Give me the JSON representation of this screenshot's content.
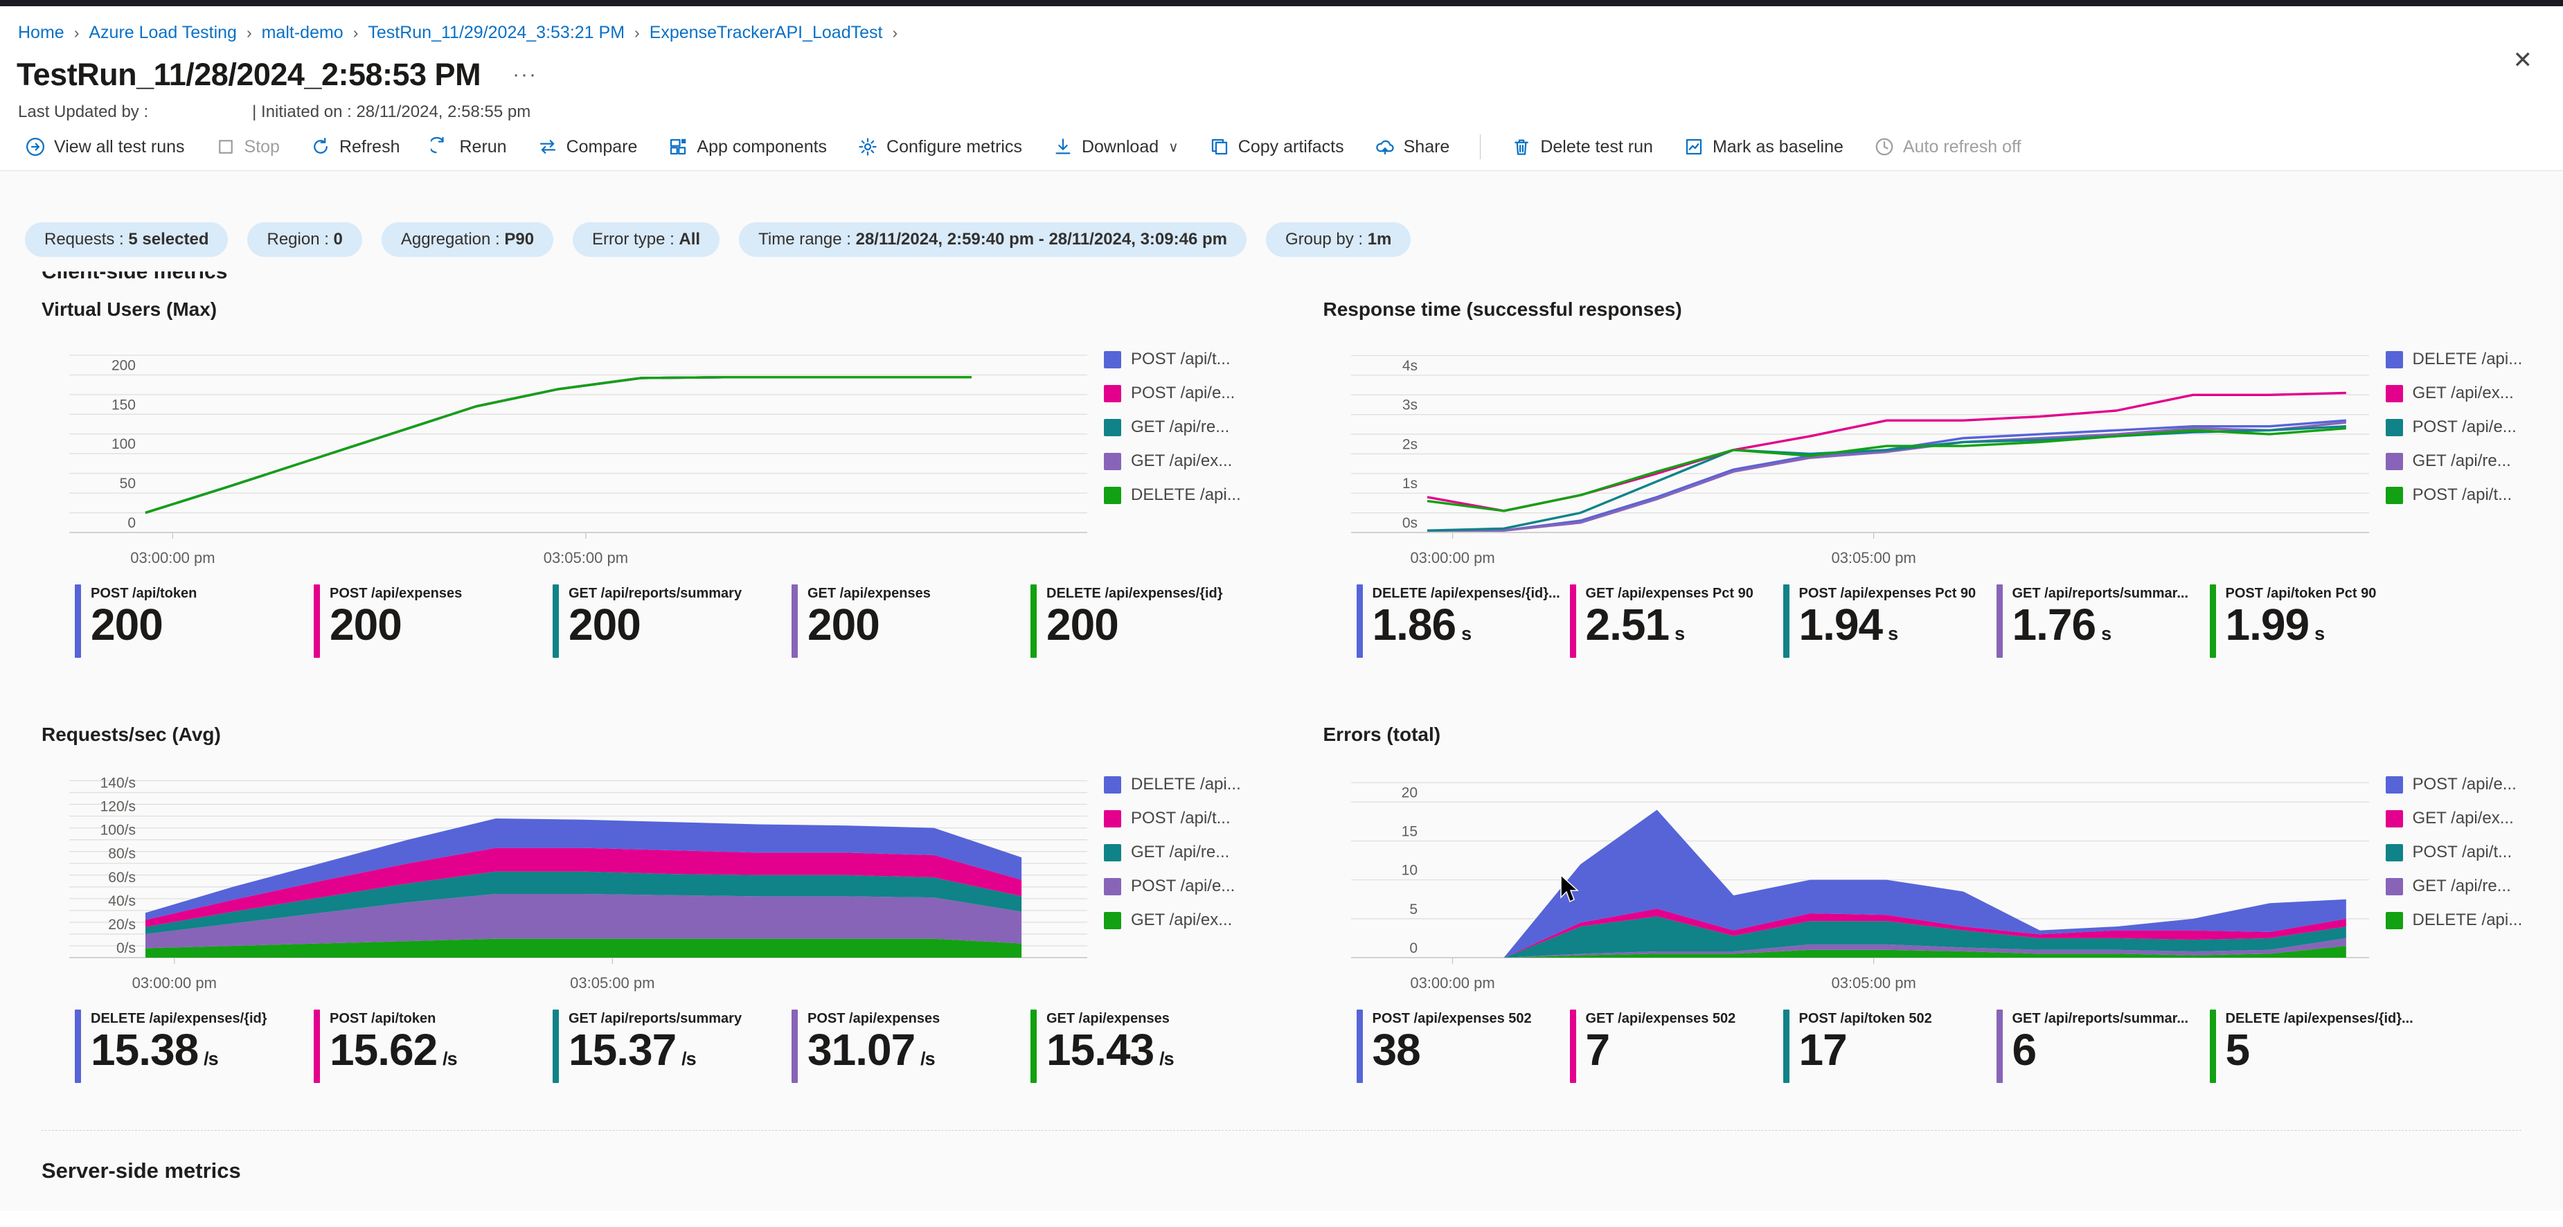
{
  "page": {
    "close_icon": "✕",
    "title_ellipsis": "···"
  },
  "breadcrumb": {
    "separator": "›",
    "items": [
      "Home",
      "Azure Load Testing",
      "malt-demo",
      "TestRun_11/29/2024_3:53:21 PM",
      "ExpenseTrackerAPI_LoadTest"
    ]
  },
  "header": {
    "title": "TestRun_11/28/2024_2:58:53 PM",
    "last_updated": "Last Updated by :",
    "initiated": "| Initiated on : 28/11/2024, 2:58:55 pm"
  },
  "toolbar": {
    "items": [
      {
        "label": "View all test runs",
        "icon": "open-in-circle-icon",
        "disabled": false
      },
      {
        "label": "Stop",
        "icon": "stop-icon",
        "disabled": true
      },
      {
        "label": "Refresh",
        "icon": "refresh-icon",
        "disabled": false
      },
      {
        "label": "Rerun",
        "icon": "rerun-icon",
        "disabled": false
      },
      {
        "label": "Compare",
        "icon": "compare-icon",
        "disabled": false
      },
      {
        "label": "App components",
        "icon": "app-components-icon",
        "disabled": false
      },
      {
        "label": "Configure metrics",
        "icon": "gear-icon",
        "disabled": false
      },
      {
        "label": "Download",
        "icon": "download-icon",
        "disabled": false,
        "chevron": "∨"
      },
      {
        "label": "Copy artifacts",
        "icon": "copy-icon",
        "disabled": false
      },
      {
        "label": "Share",
        "icon": "share-icon",
        "disabled": false
      },
      {
        "divider": true
      },
      {
        "label": "Delete test run",
        "icon": "trash-icon",
        "disabled": false
      },
      {
        "label": "Mark as baseline",
        "icon": "baseline-icon",
        "disabled": false
      },
      {
        "label": "Auto refresh off",
        "icon": "clock-icon",
        "disabled": true
      }
    ]
  },
  "clipped_heading": "Client-side metrics",
  "filters": [
    {
      "label": "Requests",
      "value": "5 selected"
    },
    {
      "label": "Region",
      "value": "0"
    },
    {
      "label": "Aggregation",
      "value": "P90"
    },
    {
      "label": "Error type",
      "value": "All"
    },
    {
      "label": "Time range",
      "value": "28/11/2024, 2:59:40 pm - 28/11/2024, 3:09:46 pm"
    },
    {
      "label": "Group by",
      "value": "1m"
    }
  ],
  "sections": {
    "server_side": "Server-side metrics"
  },
  "colors": {
    "blue": "#5664d8",
    "magenta": "#e3008c",
    "teal": "#0f8387",
    "purple": "#8764b8",
    "green": "#12a112",
    "accent": "#0b71c5",
    "grid": "#e1dfdd",
    "axis": "#c8c6c4",
    "tick_text": "#605e5c"
  },
  "chart_data": [
    {
      "id": "virtual-users",
      "type": "line",
      "side": "left",
      "title": "Virtual Users (Max)",
      "ylim": [
        0,
        232
      ],
      "grid": [
        0,
        25,
        50,
        75,
        100,
        125,
        150,
        175,
        200,
        225
      ],
      "yticks": [
        {
          "v": 0,
          "label": "0"
        },
        {
          "v": 50,
          "label": "50"
        },
        {
          "v": 100,
          "label": "100"
        },
        {
          "v": 150,
          "label": "150"
        },
        {
          "v": 200,
          "label": "200"
        }
      ],
      "xlim": [
        0,
        11.4
      ],
      "xticks": [
        {
          "v": 0.33,
          "label": "03:00:00 pm"
        },
        {
          "v": 5.33,
          "label": "03:05:00 pm"
        }
      ],
      "x": [
        0,
        1,
        2,
        3,
        4,
        5,
        6,
        7,
        8,
        9,
        10
      ],
      "series": [
        {
          "name": "POST /api/token",
          "color": "blue",
          "values": [
            25,
            58,
            92,
            126,
            160,
            182,
            196,
            197,
            197,
            197,
            197
          ]
        },
        {
          "name": "POST /api/expenses",
          "color": "magenta",
          "values": [
            25,
            58,
            92,
            126,
            160,
            182,
            196,
            197,
            197,
            197,
            197
          ]
        },
        {
          "name": "GET /api/reports/summary",
          "color": "teal",
          "values": [
            25,
            58,
            92,
            126,
            160,
            182,
            196,
            197,
            197,
            197,
            197
          ]
        },
        {
          "name": "GET /api/expenses",
          "color": "purple",
          "values": [
            25,
            58,
            92,
            126,
            160,
            182,
            196,
            197,
            197,
            197,
            197
          ]
        },
        {
          "name": "DELETE /api/expenses/{id}",
          "color": "green",
          "values": [
            25,
            58,
            92,
            126,
            160,
            182,
            196,
            197,
            197,
            197,
            197
          ]
        }
      ],
      "legend": [
        {
          "label": "POST /api/t...",
          "color": "blue"
        },
        {
          "label": "POST /api/e...",
          "color": "magenta"
        },
        {
          "label": "GET /api/re...",
          "color": "teal"
        },
        {
          "label": "GET /api/ex...",
          "color": "purple"
        },
        {
          "label": "DELETE /api...",
          "color": "green"
        }
      ],
      "stats": [
        {
          "label": "POST /api/token",
          "value": "200",
          "unit": "",
          "color": "blue"
        },
        {
          "label": "POST /api/expenses",
          "value": "200",
          "unit": "",
          "color": "magenta"
        },
        {
          "label": "GET /api/reports/summary",
          "value": "200",
          "unit": "",
          "color": "teal"
        },
        {
          "label": "GET /api/expenses",
          "value": "200",
          "unit": "",
          "color": "purple"
        },
        {
          "label": "DELETE /api/expenses/{id}",
          "value": "200",
          "unit": "",
          "color": "green"
        }
      ]
    },
    {
      "id": "response-time",
      "type": "line",
      "side": "right",
      "title": "Response time (successful responses)",
      "ylim": [
        0,
        4.65
      ],
      "grid": [
        0,
        0.5,
        1,
        1.5,
        2,
        2.5,
        3,
        3.5,
        4,
        4.5
      ],
      "yticks": [
        {
          "v": 0,
          "label": "0s"
        },
        {
          "v": 1,
          "label": "1s"
        },
        {
          "v": 2,
          "label": "2s"
        },
        {
          "v": 3,
          "label": "3s"
        },
        {
          "v": 4,
          "label": "4s"
        }
      ],
      "xlim": [
        0,
        12.3
      ],
      "xticks": [
        {
          "v": 0.33,
          "label": "03:00:00 pm"
        },
        {
          "v": 5.83,
          "label": "03:05:00 pm"
        }
      ],
      "x": [
        0,
        1,
        2,
        3,
        4,
        5,
        6,
        7,
        8,
        9,
        10,
        11,
        12
      ],
      "series": [
        {
          "name": "DELETE /api/expenses/{id} Pct 90",
          "color": "blue",
          "values": [
            0.05,
            0.05,
            0.3,
            0.9,
            1.6,
            1.95,
            2.1,
            2.4,
            2.5,
            2.6,
            2.7,
            2.7,
            2.85
          ]
        },
        {
          "name": "GET /api/reports/summary Pct 90",
          "color": "purple",
          "values": [
            0.05,
            0.05,
            0.25,
            0.85,
            1.55,
            1.9,
            2.05,
            2.3,
            2.4,
            2.5,
            2.65,
            2.6,
            2.8
          ]
        },
        {
          "name": "POST /api/expenses Pct 90",
          "color": "teal",
          "values": [
            0.05,
            0.1,
            0.5,
            1.3,
            2.1,
            2.0,
            2.1,
            2.3,
            2.35,
            2.45,
            2.55,
            2.6,
            2.7
          ]
        },
        {
          "name": "GET /api/expenses Pct 90",
          "color": "magenta",
          "values": [
            0.9,
            0.55,
            0.95,
            1.5,
            2.1,
            2.45,
            2.85,
            2.85,
            2.95,
            3.1,
            3.5,
            3.5,
            3.55
          ]
        },
        {
          "name": "POST /api/token Pct 90",
          "color": "green",
          "values": [
            0.8,
            0.55,
            0.95,
            1.55,
            2.1,
            1.95,
            2.2,
            2.2,
            2.3,
            2.45,
            2.6,
            2.5,
            2.65
          ]
        }
      ],
      "legend": [
        {
          "label": "DELETE /api...",
          "color": "blue"
        },
        {
          "label": "GET /api/ex...",
          "color": "magenta"
        },
        {
          "label": "POST /api/e...",
          "color": "teal"
        },
        {
          "label": "GET /api/re...",
          "color": "purple"
        },
        {
          "label": "POST /api/t...",
          "color": "green"
        }
      ],
      "stats": [
        {
          "label": "DELETE /api/expenses/{id}...",
          "value": "1.86",
          "unit": "s",
          "color": "blue"
        },
        {
          "label": "GET /api/expenses Pct 90",
          "value": "2.51",
          "unit": "s",
          "color": "magenta"
        },
        {
          "label": "POST /api/expenses Pct 90",
          "value": "1.94",
          "unit": "s",
          "color": "teal"
        },
        {
          "label": "GET /api/reports/summar...",
          "value": "1.76",
          "unit": "s",
          "color": "purple"
        },
        {
          "label": "POST /api/token Pct 90",
          "value": "1.99",
          "unit": "s",
          "color": "green"
        }
      ]
    },
    {
      "id": "requests-per-sec",
      "type": "stacked-area",
      "side": "left",
      "title": "Requests/sec (Avg)",
      "ylim": [
        0,
        155
      ],
      "grid": [
        0,
        10,
        20,
        30,
        40,
        50,
        60,
        70,
        80,
        90,
        100,
        110,
        120,
        130,
        140,
        150
      ],
      "yticks": [
        {
          "v": 0,
          "label": "0/s"
        },
        {
          "v": 20,
          "label": "20/s"
        },
        {
          "v": 40,
          "label": "40/s"
        },
        {
          "v": 60,
          "label": "60/s"
        },
        {
          "v": 80,
          "label": "80/s"
        },
        {
          "v": 100,
          "label": "100/s"
        },
        {
          "v": 120,
          "label": "120/s"
        },
        {
          "v": 140,
          "label": "140/s"
        }
      ],
      "xlim": [
        0,
        10.75
      ],
      "xticks": [
        {
          "v": 0.33,
          "label": "03:00:00 pm"
        },
        {
          "v": 5.33,
          "label": "03:05:00 pm"
        }
      ],
      "x": [
        0,
        1,
        2,
        3,
        4,
        5,
        6,
        7,
        8,
        9,
        10
      ],
      "series": [
        {
          "name": "GET /api/expenses",
          "color": "green",
          "values": [
            8,
            10,
            12,
            14,
            16,
            16,
            16,
            16,
            16,
            16,
            12
          ]
        },
        {
          "name": "POST /api/expenses",
          "color": "purple",
          "values": [
            12,
            19,
            26,
            33,
            38,
            38,
            37,
            36,
            36,
            35,
            27
          ]
        },
        {
          "name": "GET /api/reports/summary",
          "color": "teal",
          "values": [
            6,
            10,
            13,
            16,
            19,
            19,
            18,
            18,
            18,
            17,
            13
          ]
        },
        {
          "name": "POST /api/token",
          "color": "magenta",
          "values": [
            6,
            10,
            14,
            17,
            20,
            20,
            20,
            19,
            19,
            19,
            14
          ]
        },
        {
          "name": "DELETE /api/expenses/{id}",
          "color": "blue",
          "values": [
            6,
            11,
            15,
            20,
            25,
            24,
            24,
            24,
            23,
            23,
            19
          ]
        }
      ],
      "legend": [
        {
          "label": "DELETE /api...",
          "color": "blue"
        },
        {
          "label": "POST /api/t...",
          "color": "magenta"
        },
        {
          "label": "GET /api/re...",
          "color": "teal"
        },
        {
          "label": "POST /api/e...",
          "color": "purple"
        },
        {
          "label": "GET /api/ex...",
          "color": "green"
        }
      ],
      "stats": [
        {
          "label": "DELETE /api/expenses/{id}",
          "value": "15.38",
          "unit": "/s",
          "color": "blue"
        },
        {
          "label": "POST /api/token",
          "value": "15.62",
          "unit": "/s",
          "color": "magenta"
        },
        {
          "label": "GET /api/reports/summary",
          "value": "15.37",
          "unit": "/s",
          "color": "teal"
        },
        {
          "label": "POST /api/expenses",
          "value": "31.07",
          "unit": "/s",
          "color": "purple"
        },
        {
          "label": "GET /api/expenses",
          "value": "15.43",
          "unit": "/s",
          "color": "green"
        }
      ]
    },
    {
      "id": "errors-total",
      "type": "stacked-area",
      "side": "right",
      "title": "Errors (total)",
      "ylim": [
        0,
        23.5
      ],
      "grid": [
        0,
        5,
        10,
        15,
        20,
        22.5
      ],
      "yticks": [
        {
          "v": 0,
          "label": "0"
        },
        {
          "v": 5,
          "label": "5"
        },
        {
          "v": 10,
          "label": "10"
        },
        {
          "v": 15,
          "label": "15"
        },
        {
          "v": 20,
          "label": "20"
        }
      ],
      "xlim": [
        0,
        12.3
      ],
      "xticks": [
        {
          "v": 0.33,
          "label": "03:00:00 pm"
        },
        {
          "v": 5.83,
          "label": "03:05:00 pm"
        }
      ],
      "x": [
        1,
        2,
        3,
        4,
        5,
        6,
        7,
        8,
        9,
        10,
        11,
        12
      ],
      "series": [
        {
          "name": "DELETE /api/expenses/{id} 502",
          "color": "green",
          "values": [
            0,
            0.3,
            0.5,
            0.5,
            1.0,
            1.0,
            0.8,
            0.5,
            0.5,
            0.3,
            0.5,
            1.5
          ]
        },
        {
          "name": "GET /api/reports/summary 502",
          "color": "purple",
          "values": [
            0,
            0.2,
            0.3,
            0.3,
            0.7,
            0.7,
            0.5,
            0.5,
            0.5,
            0.5,
            0.5,
            1.0
          ]
        },
        {
          "name": "POST /api/token 502",
          "color": "teal",
          "values": [
            0,
            3.5,
            4.5,
            2.0,
            3.0,
            3.0,
            2.2,
            1.5,
            1.5,
            1.5,
            1.5,
            1.5
          ]
        },
        {
          "name": "GET /api/expenses 502",
          "color": "magenta",
          "values": [
            0,
            0.5,
            1.0,
            0.7,
            1.0,
            0.8,
            0.5,
            0.5,
            1.0,
            1.2,
            0.8,
            1.0
          ]
        },
        {
          "name": "POST /api/expenses 502",
          "color": "blue",
          "values": [
            0,
            7.5,
            12.7,
            4.5,
            4.3,
            4.5,
            4.5,
            0.5,
            0.5,
            1.5,
            3.7,
            2.5
          ]
        }
      ],
      "legend": [
        {
          "label": "POST /api/e...",
          "color": "blue"
        },
        {
          "label": "GET /api/ex...",
          "color": "magenta"
        },
        {
          "label": "POST /api/t...",
          "color": "teal"
        },
        {
          "label": "GET /api/re...",
          "color": "purple"
        },
        {
          "label": "DELETE /api...",
          "color": "green"
        }
      ],
      "stats": [
        {
          "label": "POST /api/expenses 502",
          "value": "38",
          "unit": "",
          "color": "blue"
        },
        {
          "label": "GET /api/expenses 502",
          "value": "7",
          "unit": "",
          "color": "magenta"
        },
        {
          "label": "POST /api/token 502",
          "value": "17",
          "unit": "",
          "color": "teal"
        },
        {
          "label": "GET /api/reports/summar...",
          "value": "6",
          "unit": "",
          "color": "purple"
        },
        {
          "label": "DELETE /api/expenses/{id}...",
          "value": "5",
          "unit": "",
          "color": "green"
        }
      ]
    }
  ]
}
